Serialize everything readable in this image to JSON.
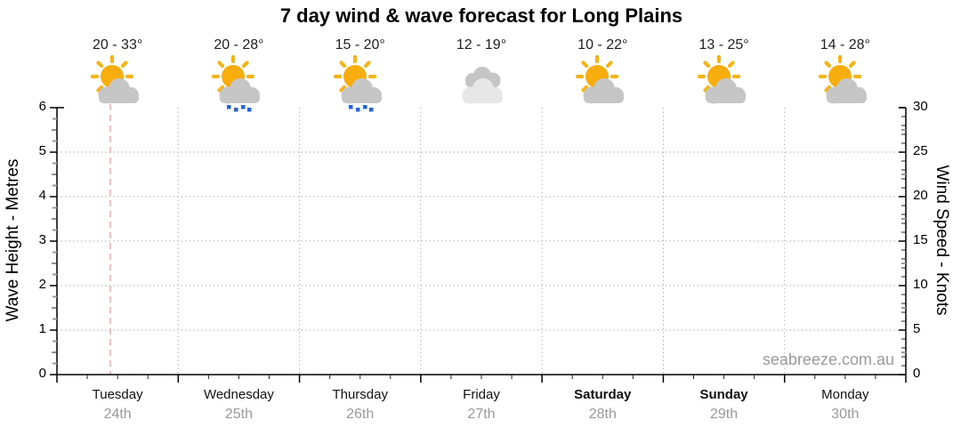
{
  "title": "7 day wind & wave forecast for Long Plains",
  "watermark": "seabreeze.com.au",
  "days": [
    {
      "name": "Tuesday",
      "date": "24th",
      "temp": "20 - 33°",
      "icon": "partly-cloudy",
      "day_style": "weekday"
    },
    {
      "name": "Wednesday",
      "date": "25th",
      "temp": "20 - 28°",
      "icon": "partly-cloudy-rain",
      "day_style": "weekday"
    },
    {
      "name": "Thursday",
      "date": "26th",
      "temp": "15 - 20°",
      "icon": "partly-cloudy-rain",
      "day_style": "weekday"
    },
    {
      "name": "Friday",
      "date": "27th",
      "temp": "12 - 19°",
      "icon": "cloudy",
      "day_style": "weekday"
    },
    {
      "name": "Saturday",
      "date": "28th",
      "temp": "10 - 22°",
      "icon": "partly-cloudy",
      "day_style": "weekend"
    },
    {
      "name": "Sunday",
      "date": "29th",
      "temp": "13 - 25°",
      "icon": "partly-cloudy",
      "day_style": "weekend"
    },
    {
      "name": "Monday",
      "date": "30th",
      "temp": "14 - 28°",
      "icon": "partly-cloudy",
      "day_style": "weekday"
    }
  ],
  "axes": {
    "wave": {
      "label": "Wave Height - Metres",
      "ticks": [
        "0",
        "1",
        "2",
        "3",
        "4",
        "5",
        "6"
      ]
    },
    "wind": {
      "label": "Wind Speed - Knots",
      "ticks": [
        "0",
        "5",
        "10",
        "15",
        "20",
        "25",
        "30"
      ]
    }
  },
  "colors": {
    "sun": "#F7AD0D",
    "cloud": "#C6C6C6",
    "cloud_light": "#E7E7E7",
    "rain": "#2463D9",
    "now_line": "#F3A8A8",
    "gridline": "#AAAAAA",
    "muted_text": "#999999"
  },
  "chart_data": {
    "type": "line",
    "title": "7 day wind & wave forecast for Long Plains",
    "categories": [
      "Tuesday 24th",
      "Wednesday 25th",
      "Thursday 26th",
      "Friday 27th",
      "Saturday 28th",
      "Sunday 29th",
      "Monday 30th"
    ],
    "series": [],
    "note": "Axes are empty of plotted series; the chart shows per-day temperature ranges and weather icons only.",
    "temperature_min": [
      20,
      20,
      15,
      12,
      10,
      13,
      14
    ],
    "temperature_max": [
      33,
      28,
      20,
      19,
      22,
      25,
      28
    ],
    "temperature_labels": [
      "20 - 33°",
      "20 - 28°",
      "15 - 20°",
      "12 - 19°",
      "10 - 22°",
      "13 - 25°",
      "14 - 28°"
    ],
    "weather_icons": [
      "partly-cloudy",
      "partly-cloudy-rain",
      "partly-cloudy-rain",
      "cloudy",
      "partly-cloudy",
      "partly-cloudy",
      "partly-cloudy"
    ],
    "y_left": {
      "label": "Wave Height - Metres",
      "range": [
        0,
        6
      ],
      "ticks": [
        0,
        1,
        2,
        3,
        4,
        5,
        6
      ]
    },
    "y_right": {
      "label": "Wind Speed - Knots",
      "range": [
        0,
        30
      ],
      "ticks": [
        0,
        5,
        10,
        15,
        20,
        25,
        30
      ]
    },
    "grid": true,
    "legend": false,
    "now_marker": {
      "day": "Tuesday",
      "style": "dashed",
      "color": "#F3A8A8"
    }
  }
}
